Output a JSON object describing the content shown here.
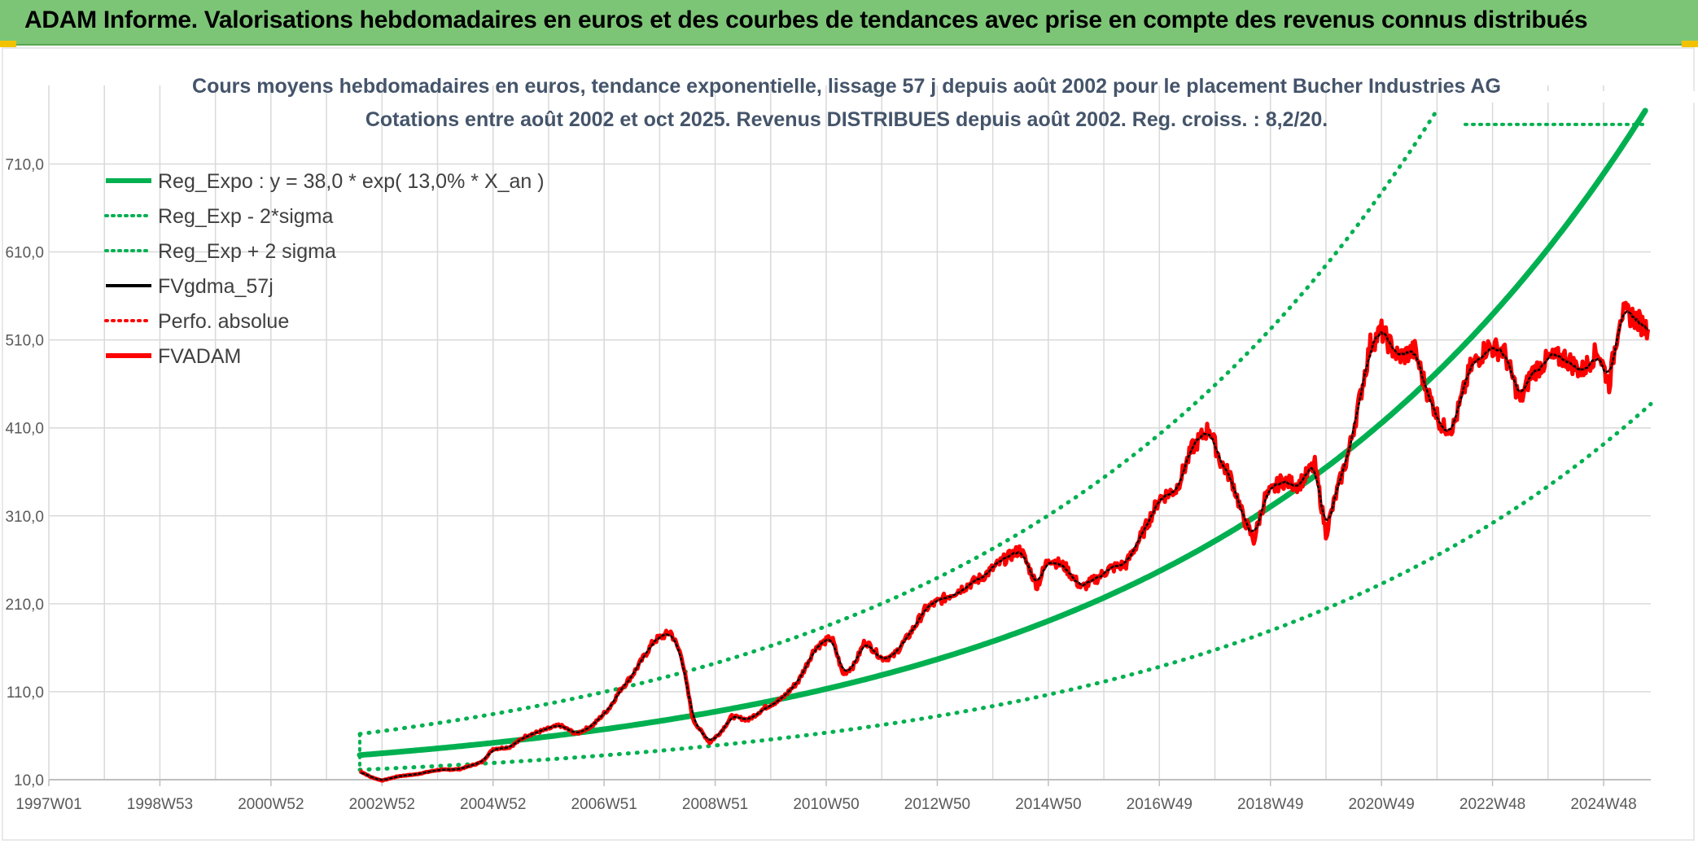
{
  "banner": {
    "title": "ADAM Informe. Valorisations hebdomadaires en euros et des courbes de tendances avec prise en compte des revenus connus distribués"
  },
  "colors": {
    "banner_bg": "#7cc576",
    "trend": "#00b050",
    "smooth": "#000000",
    "price": "#ff0000",
    "grid": "#d9d9d9"
  },
  "chart_data": {
    "type": "line",
    "title_line1": "Cours moyens hebdomadaires en euros, tendance exponentielle, lissage 57 j depuis août 2002 pour le placement Bucher Industries AG",
    "title_line2": "Cotations entre août 2002 et oct 2025. Revenus DISTRIBUES depuis août 2002. Reg. croiss. : 8,2/20.",
    "xlabel": "",
    "ylabel": "",
    "x_ticks": [
      "1997W01",
      "1998W53",
      "2000W52",
      "2002W52",
      "2004W52",
      "2006W51",
      "2008W51",
      "2010W50",
      "2012W50",
      "2014W50",
      "2016W49",
      "2018W49",
      "2020W49",
      "2022W48",
      "2024W48"
    ],
    "xlim": [
      1997.0,
      2025.85
    ],
    "y_ticks": [
      "10,0",
      "110,0",
      "210,0",
      "310,0",
      "410,0",
      "510,0",
      "610,0",
      "710,0"
    ],
    "ylim": [
      10,
      790
    ],
    "grid": true,
    "legend_position": "top-left",
    "trend": {
      "a": 38.0,
      "rate": 0.13,
      "start": 2002.6,
      "sigma_factor_up": 1.63,
      "sigma_factor_down": 0.56
    },
    "legend": [
      {
        "label": "Reg_Expo : y = 38,0 * exp( 13,0% *  X_an )",
        "style": "solid-thick",
        "color": "#00b050"
      },
      {
        "label": "Reg_Exp - 2*sigma",
        "style": "dotted",
        "color": "#00b050"
      },
      {
        "label": "Reg_Exp + 2 sigma",
        "style": "dotted",
        "color": "#00b050"
      },
      {
        "label": "FVgdma_57j",
        "style": "solid",
        "color": "#000000"
      },
      {
        "label": "Perfo. absolue",
        "style": "dotted",
        "color": "#ff0000"
      },
      {
        "label": "FVADAM",
        "style": "solid-thick",
        "color": "#ff0000"
      }
    ],
    "series": [
      {
        "name": "FVADAM",
        "x": [
          2002.6,
          2002.8,
          2003.0,
          2003.3,
          2003.6,
          2004.0,
          2004.4,
          2004.8,
          2005.0,
          2005.3,
          2005.6,
          2005.9,
          2006.2,
          2006.5,
          2006.8,
          2007.1,
          2007.3,
          2007.5,
          2007.7,
          2007.9,
          2008.2,
          2008.4,
          2008.6,
          2008.9,
          2009.1,
          2009.3,
          2009.6,
          2009.9,
          2010.2,
          2010.5,
          2010.8,
          2011.1,
          2011.3,
          2011.5,
          2011.7,
          2012.0,
          2012.2,
          2012.5,
          2012.8,
          2013.0,
          2013.4,
          2013.8,
          2014.2,
          2014.5,
          2014.8,
          2015.0,
          2015.3,
          2015.6,
          2015.9,
          2016.1,
          2016.4,
          2016.7,
          2017.0,
          2017.3,
          2017.6,
          2017.9,
          2018.1,
          2018.3,
          2018.5,
          2018.7,
          2018.9,
          2019.2,
          2019.5,
          2019.8,
          2020.0,
          2020.2,
          2020.4,
          2020.6,
          2020.8,
          2021.0,
          2021.3,
          2021.6,
          2021.8,
          2022.1,
          2022.3,
          2022.6,
          2022.9,
          2023.2,
          2023.5,
          2023.7,
          2024.0,
          2024.3,
          2024.6,
          2024.9,
          2025.1,
          2025.3,
          2025.5,
          2025.8
        ],
        "y": [
          20,
          13,
          9,
          14,
          16,
          21,
          22,
          30,
          45,
          47,
          60,
          66,
          72,
          62,
          72,
          92,
          113,
          128,
          148,
          168,
          178,
          150,
          78,
          52,
          64,
          82,
          78,
          92,
          102,
          122,
          160,
          172,
          130,
          140,
          168,
          148,
          150,
          175,
          205,
          212,
          226,
          240,
          260,
          272,
          230,
          262,
          252,
          228,
          240,
          250,
          255,
          290,
          330,
          340,
          388,
          410,
          372,
          352,
          310,
          282,
          330,
          350,
          345,
          368,
          290,
          338,
          380,
          440,
          505,
          520,
          490,
          498,
          455,
          410,
          412,
          478,
          502,
          498,
          440,
          472,
          488,
          490,
          474,
          498,
          460,
          540,
          538,
          522
        ]
      }
    ]
  }
}
